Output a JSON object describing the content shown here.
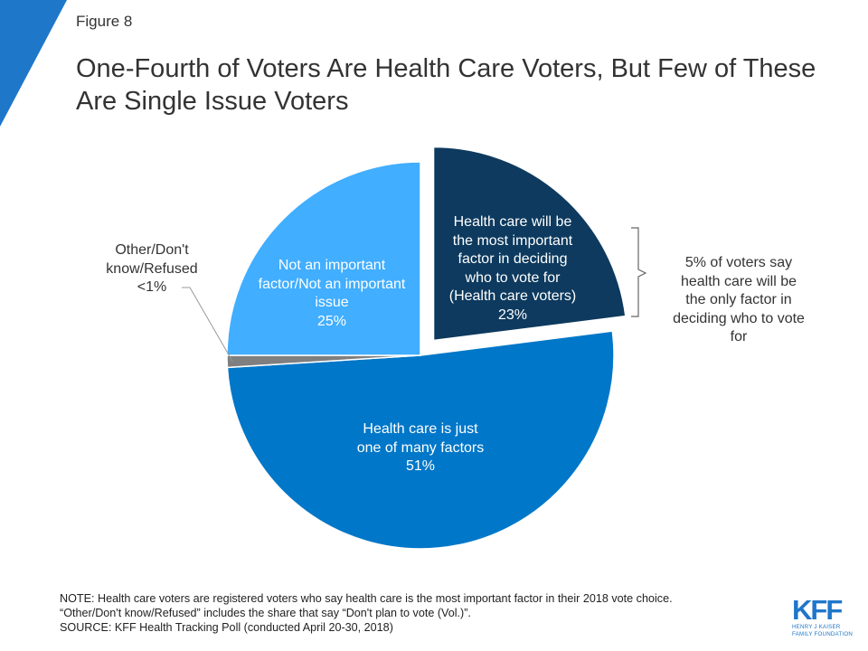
{
  "figure_label": "Figure 8",
  "title": "One-Fourth of Voters Are Health Care Voters, But Few of These Are Single Issue Voters",
  "chart_data": {
    "type": "pie",
    "title": "One-Fourth of Voters Are Health Care Voters, But Few of These Are Single Issue Voters",
    "slices": [
      {
        "name": "Health care will be the most important factor in deciding who to vote for (Health care voters)",
        "value": 23,
        "value_label": "23%",
        "color": "#0d3a5e",
        "exploded": true,
        "label_lines": [
          "Health care will be",
          "the most important",
          "factor in deciding",
          "who to vote for",
          "(Health care voters)",
          "23%"
        ]
      },
      {
        "name": "Health care is just one of many factors",
        "value": 51,
        "value_label": "51%",
        "color": "#0077c8",
        "label_lines": [
          "Health care is just",
          "one of many factors",
          "51%"
        ]
      },
      {
        "name": "Other/Don't know/Refused",
        "value": 1,
        "value_label": "<1%",
        "color": "#7f7f7f",
        "label_lines": [
          "Other/Don't",
          "know/Refused",
          "<1%"
        ]
      },
      {
        "name": "Not an important factor/Not an important issue",
        "value": 25,
        "value_label": "25%",
        "color": "#41aeff",
        "label_lines": [
          "Not an important",
          "factor/Not an important",
          "issue",
          "25%"
        ]
      }
    ],
    "annotation": {
      "lines": [
        "5% of voters say",
        "health care will be",
        "the only factor in",
        "deciding who to vote",
        "for"
      ],
      "refers_to": "Health care will be the most important factor in deciding who to vote for (Health care voters)"
    }
  },
  "notes": [
    "NOTE: Health care voters are registered voters who say health care is the most important factor in their 2018 vote choice.",
    "“Other/Don't know/Refused” includes the share that say “Don't plan to vote (Vol.)”.",
    "SOURCE: KFF Health Tracking Poll (conducted April 20-30, 2018)"
  ],
  "logo": {
    "mark": "KFF",
    "sub_lines": [
      "HENRY J KAISER",
      "FAMILY FOUNDATION"
    ]
  },
  "colors": {
    "corner": "#1f77c9",
    "text": "#333333",
    "label_light": "#ffffff",
    "label_dark": "#333333",
    "leader": "#999999"
  }
}
